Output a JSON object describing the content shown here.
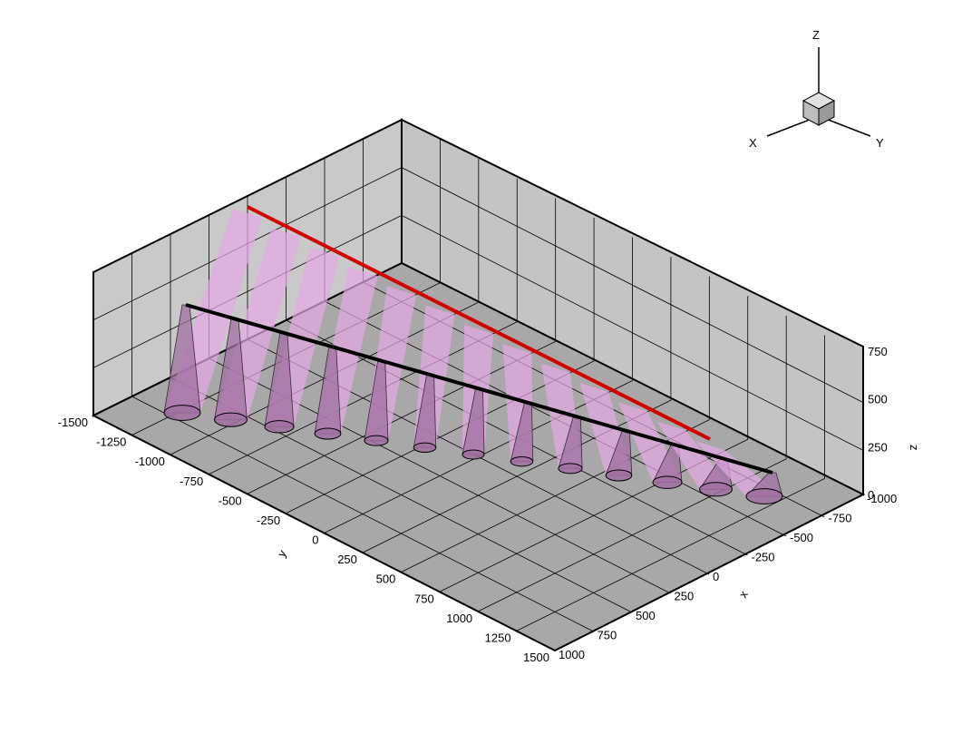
{
  "plot": {
    "type": "3d-box",
    "axes": {
      "x": {
        "label": "x",
        "ticks": [
          "1000",
          "750",
          "500",
          "250",
          "0",
          "-250",
          "-500",
          "-750",
          "-1000"
        ]
      },
      "y": {
        "label": "y",
        "ticks": [
          "-1500",
          "-1250",
          "-1000",
          "-750",
          "-500",
          "-250",
          "0",
          "250",
          "500",
          "750",
          "1000",
          "1250",
          "1500"
        ]
      },
      "z": {
        "label": "z",
        "ticks": [
          "0",
          "250",
          "500",
          "750"
        ]
      }
    },
    "grid": true,
    "colors": {
      "back_wall": "#c8c8c8",
      "side_wall": "#bebebe",
      "floor": "#a9a9a9",
      "red_line": "#d40000",
      "black_line": "#000000",
      "beam": "#e6a8e6",
      "cone": "#a070a0"
    },
    "beam_count": 13
  },
  "triad": {
    "x": "X",
    "y": "Y",
    "z": "Z"
  }
}
